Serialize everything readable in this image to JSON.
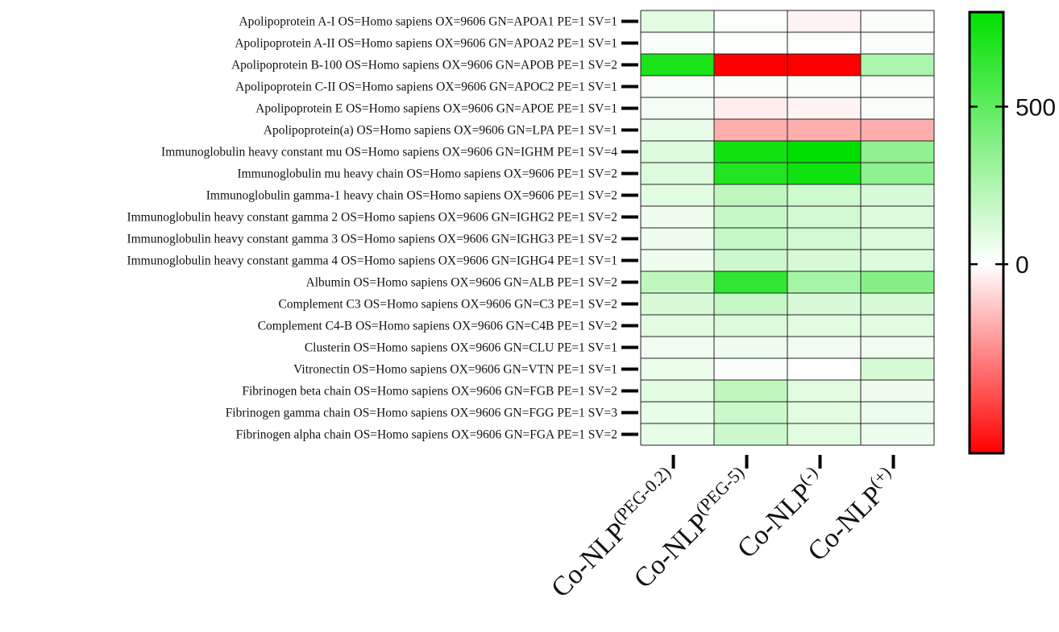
{
  "chart_data": {
    "type": "heatmap",
    "rows": [
      "Apolipoprotein A-I OS=Homo sapiens OX=9606 GN=APOA1 PE=1 SV=1",
      "Apolipoprotein A-II OS=Homo sapiens OX=9606 GN=APOA2 PE=1 SV=1",
      "Apolipoprotein B-100 OS=Homo sapiens OX=9606 GN=APOB PE=1 SV=2",
      "Apolipoprotein C-II OS=Homo sapiens OX=9606 GN=APOC2 PE=1 SV=1",
      "Apolipoprotein E OS=Homo sapiens OX=9606 GN=APOE PE=1 SV=1",
      "Apolipoprotein(a) OS=Homo sapiens OX=9606 GN=LPA PE=1 SV=1",
      "Immunoglobulin heavy constant mu OS=Homo sapiens OX=9606 GN=IGHM PE=1 SV=4",
      "Immunoglobulin mu heavy chain OS=Homo sapiens OX=9606 PE=1 SV=2",
      "Immunoglobulin gamma-1 heavy chain OS=Homo sapiens OX=9606 PE=1 SV=2",
      "Immunoglobulin heavy constant gamma 2 OS=Homo sapiens OX=9606 GN=IGHG2 PE=1 SV=2",
      "Immunoglobulin heavy constant gamma 3 OS=Homo sapiens OX=9606 GN=IGHG3 PE=1 SV=2",
      "Immunoglobulin heavy constant gamma 4 OS=Homo sapiens OX=9606 GN=IGHG4 PE=1 SV=1",
      "Albumin OS=Homo sapiens OX=9606 GN=ALB PE=1 SV=2",
      "Complement C3 OS=Homo sapiens OX=9606 GN=C3 PE=1 SV=2",
      "Complement C4-B OS=Homo sapiens OX=9606 GN=C4B PE=1 SV=2",
      "Clusterin OS=Homo sapiens OX=9606 GN=CLU PE=1 SV=1",
      "Vitronectin OS=Homo sapiens OX=9606 GN=VTN PE=1 SV=1",
      "Fibrinogen beta chain OS=Homo sapiens OX=9606 GN=FGB PE=1 SV=2",
      "Fibrinogen gamma chain OS=Homo sapiens OX=9606 GN=FGG PE=1 SV=3",
      "Fibrinogen alpha chain OS=Homo sapiens OX=9606 GN=FGA PE=1 SV=2"
    ],
    "columns": [
      {
        "base": "Co-NLP",
        "sup": "(PEG-0.2)"
      },
      {
        "base": "Co-NLP",
        "sup": "(PEG-5)"
      },
      {
        "base": "Co-NLP",
        "sup": "(-)"
      },
      {
        "base": "Co-NLP",
        "sup": "(+)"
      }
    ],
    "values": [
      [
        90,
        5,
        -30,
        20
      ],
      [
        15,
        10,
        10,
        15
      ],
      [
        720,
        -600,
        -600,
        260
      ],
      [
        25,
        15,
        15,
        20
      ],
      [
        35,
        -40,
        -25,
        15
      ],
      [
        70,
        -190,
        -190,
        -190
      ],
      [
        110,
        750,
        800,
        350
      ],
      [
        110,
        700,
        750,
        350
      ],
      [
        90,
        200,
        150,
        120
      ],
      [
        50,
        180,
        140,
        110
      ],
      [
        50,
        180,
        140,
        110
      ],
      [
        50,
        160,
        130,
        110
      ],
      [
        200,
        650,
        280,
        380
      ],
      [
        120,
        180,
        120,
        130
      ],
      [
        90,
        110,
        90,
        90
      ],
      [
        40,
        50,
        40,
        40
      ],
      [
        60,
        15,
        0,
        130
      ],
      [
        90,
        200,
        90,
        50
      ],
      [
        70,
        160,
        90,
        60
      ],
      [
        80,
        160,
        90,
        50
      ]
    ],
    "colorbar": {
      "min": -600,
      "max": 800,
      "ticks": [
        0,
        500
      ],
      "colors": {
        "low": "#ff0000",
        "mid": "#ffffff",
        "high": "#00e000"
      }
    },
    "xlabel": "",
    "ylabel": "",
    "title": ""
  }
}
